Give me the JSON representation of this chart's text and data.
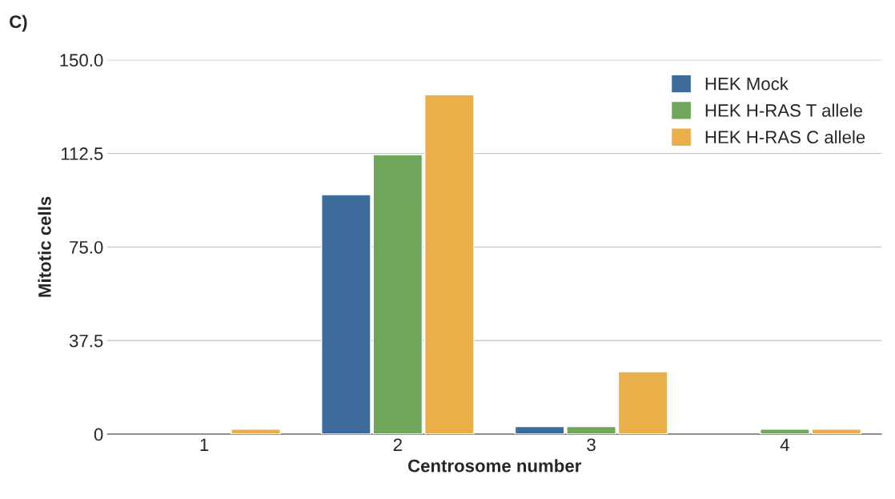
{
  "chart_data": {
    "type": "bar",
    "title": "C)",
    "xlabel": "Centrosome number",
    "ylabel": "Mitotic cells",
    "categories": [
      "1",
      "2",
      "3",
      "4"
    ],
    "series": [
      {
        "name": "HEK Mock",
        "color": "#3d6b9c",
        "values": [
          null,
          96,
          3,
          null
        ]
      },
      {
        "name": "HEK H-RAS T allele",
        "color": "#6fa65a",
        "values": [
          null,
          112,
          3,
          2
        ]
      },
      {
        "name": "HEK H-RAS C allele",
        "color": "#ebaf4a",
        "values": [
          2,
          136,
          25,
          2
        ]
      }
    ],
    "ylim": [
      0,
      150
    ],
    "yticks": [
      {
        "value": 0,
        "label": "0"
      },
      {
        "value": 37.5,
        "label": "37.5"
      },
      {
        "value": 75,
        "label": "75.0"
      },
      {
        "value": 112.5,
        "label": "112.5"
      },
      {
        "value": 150,
        "label": "150.0"
      }
    ],
    "grid": "y",
    "legend": "top right"
  }
}
